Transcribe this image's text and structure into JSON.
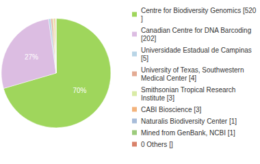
{
  "chart_data": {
    "type": "pie",
    "categories": [
      "Centre for Biodiversity Genomics [520]",
      "Canadian Centre for DNA Barcoding [202]",
      "Universidade Estadual de Campinas [5]",
      "University of Texas, Southwestern Medical Center [4]",
      "Smithsonian Tropical Research Institute [3]",
      "CABI Bioscience [3]",
      "Naturalis Biodiversity Center [1]",
      "Mined from GenBank, NCBI [1]",
      "0 Others []"
    ],
    "values": [
      70.4,
      27.3,
      0.7,
      0.5,
      0.4,
      0.4,
      0.1,
      0.1,
      0
    ],
    "value_labels": [
      "70%",
      "27%",
      null,
      null,
      null,
      null,
      null,
      null,
      null
    ],
    "colors": [
      "#9fd65c",
      "#dcbde2",
      "#b9d5e6",
      "#e3ab94",
      "#d9eba6",
      "#f3b37c",
      "#a7bcd9",
      "#9ccb7c",
      "#d8826a"
    ],
    "data_labels": true,
    "legend": "right"
  }
}
